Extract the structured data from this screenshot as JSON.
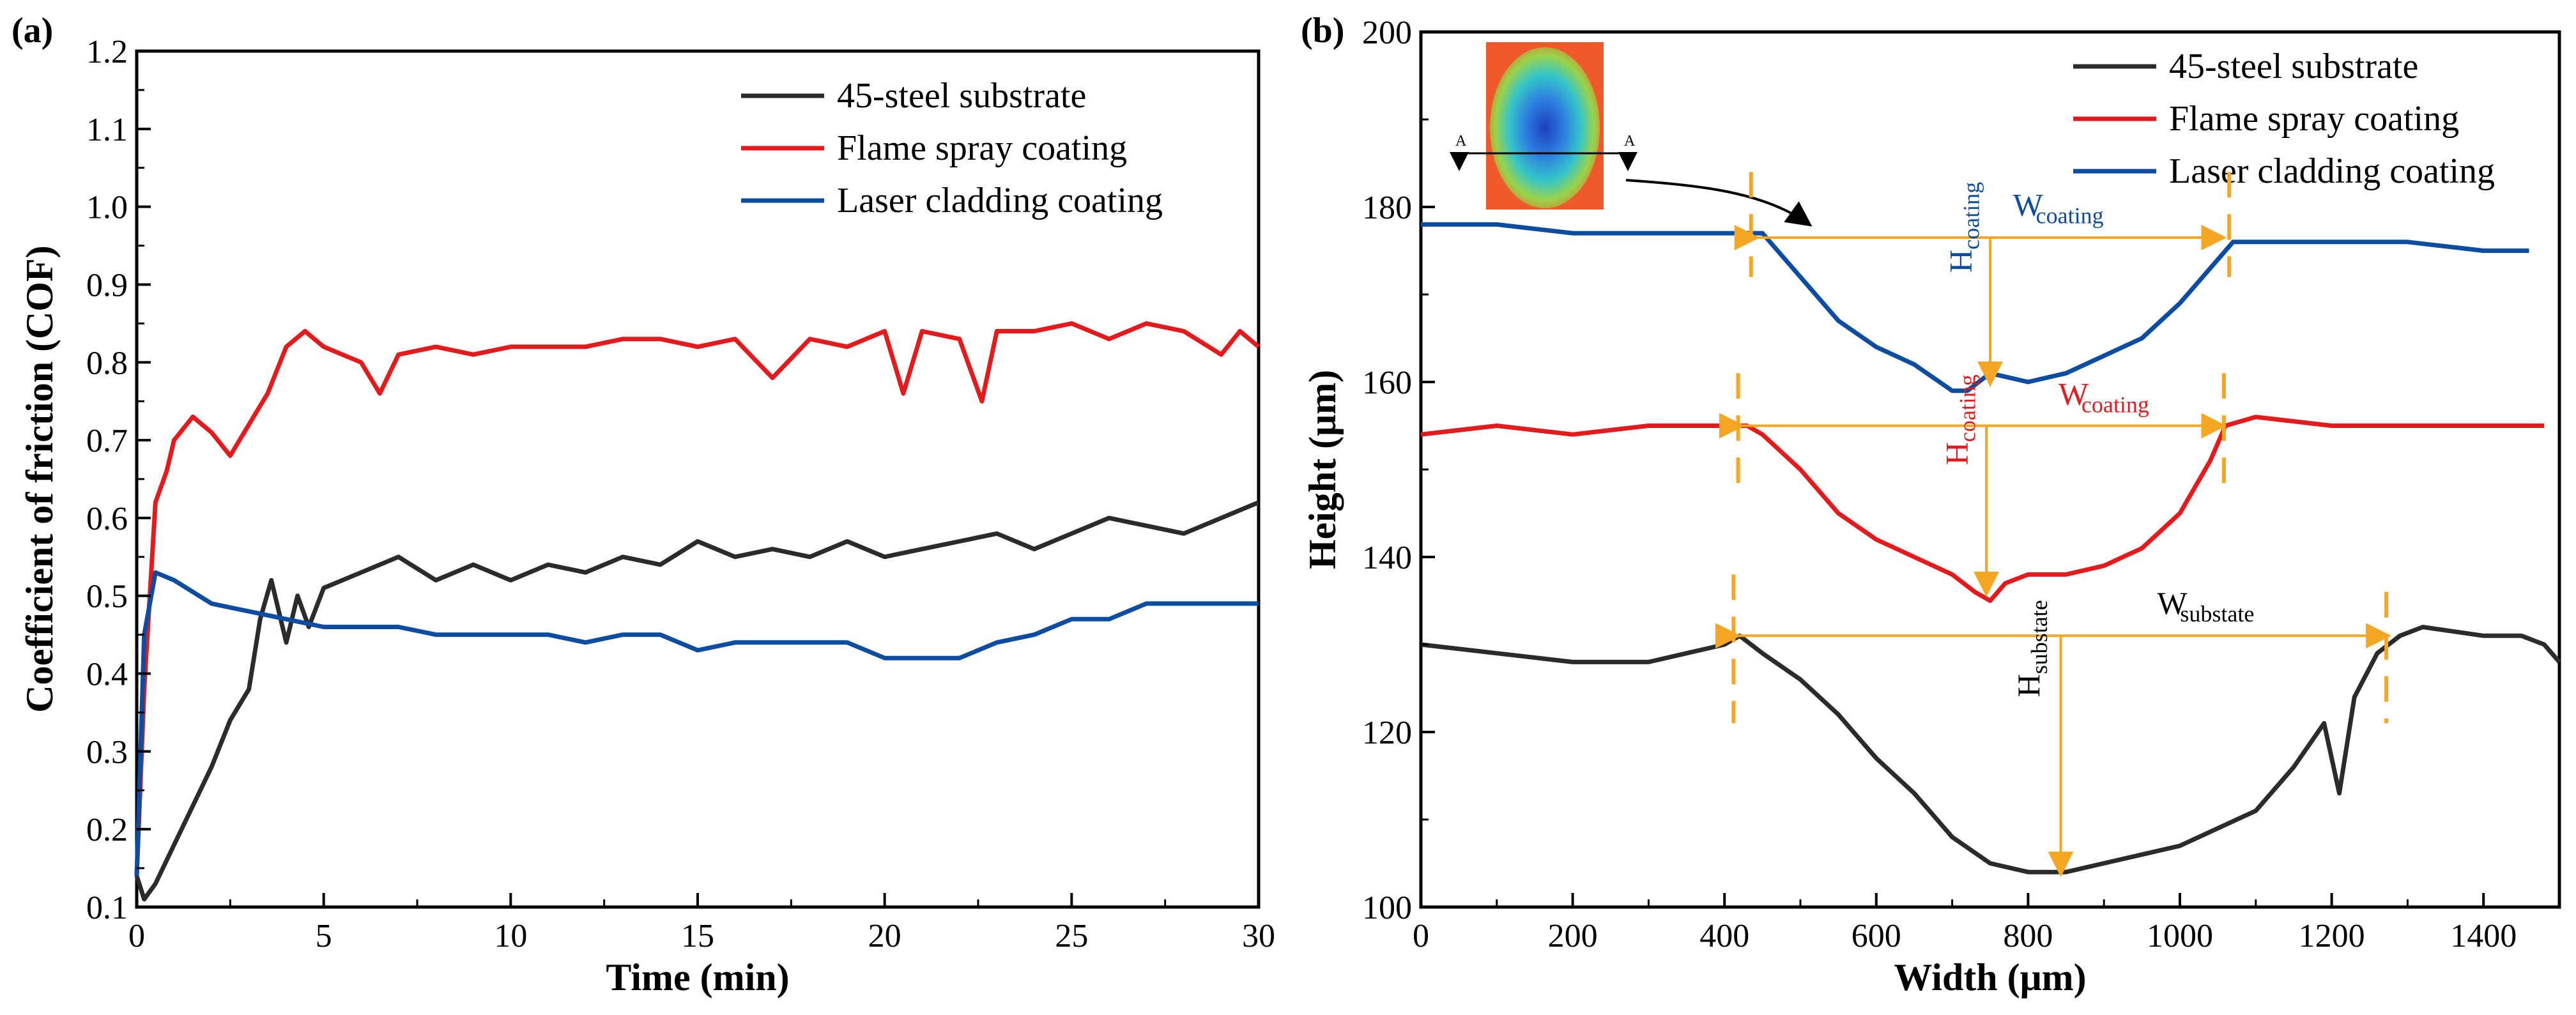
{
  "chart_data": [
    {
      "type": "line",
      "panel_label": "(a)",
      "xlabel": "Time (min)",
      "ylabel": "Coefficient of friction (COF)",
      "xlim": [
        0,
        30
      ],
      "ylim": [
        0.1,
        1.2
      ],
      "xticks": [
        "0",
        "5",
        "10",
        "15",
        "20",
        "25",
        "30"
      ],
      "yticks": [
        "0.1",
        "0.2",
        "0.3",
        "0.4",
        "0.5",
        "0.6",
        "0.7",
        "0.8",
        "0.9",
        "1.0",
        "1.1",
        "1.2"
      ],
      "legend_position": "top-right",
      "series": [
        {
          "name": "45-steel substrate",
          "color": "#2b2b2b",
          "x": [
            0,
            0.2,
            0.5,
            1,
            1.5,
            2,
            2.5,
            3,
            3.3,
            3.6,
            4,
            4.3,
            4.6,
            5,
            6,
            7,
            8,
            9,
            10,
            11,
            12,
            13,
            14,
            15,
            16,
            17,
            18,
            19,
            20,
            21,
            22,
            23,
            24,
            25,
            26,
            27,
            28,
            29,
            30
          ],
          "values": [
            0.14,
            0.11,
            0.13,
            0.18,
            0.23,
            0.28,
            0.34,
            0.38,
            0.47,
            0.52,
            0.44,
            0.5,
            0.46,
            0.51,
            0.53,
            0.55,
            0.52,
            0.54,
            0.52,
            0.54,
            0.53,
            0.55,
            0.54,
            0.57,
            0.55,
            0.56,
            0.55,
            0.57,
            0.55,
            0.56,
            0.57,
            0.58,
            0.56,
            0.58,
            0.6,
            0.59,
            0.58,
            0.6,
            0.62
          ]
        },
        {
          "name": "Flame spray coating",
          "color": "#e41a1c",
          "x": [
            0,
            0.2,
            0.5,
            0.8,
            1,
            1.5,
            2,
            2.5,
            3,
            3.5,
            4,
            4.5,
            5,
            6,
            6.5,
            7,
            8,
            9,
            10,
            11,
            12,
            13,
            14,
            15,
            16,
            17,
            18,
            19,
            20,
            20.5,
            21,
            22,
            22.6,
            23,
            24,
            25,
            26,
            27,
            28,
            29,
            29.5,
            30
          ],
          "values": [
            0.14,
            0.38,
            0.62,
            0.66,
            0.7,
            0.73,
            0.71,
            0.68,
            0.72,
            0.76,
            0.82,
            0.84,
            0.82,
            0.8,
            0.76,
            0.81,
            0.82,
            0.81,
            0.82,
            0.82,
            0.82,
            0.83,
            0.83,
            0.82,
            0.83,
            0.78,
            0.83,
            0.82,
            0.84,
            0.76,
            0.84,
            0.83,
            0.75,
            0.84,
            0.84,
            0.85,
            0.83,
            0.85,
            0.84,
            0.81,
            0.84,
            0.82
          ]
        },
        {
          "name": "Laser cladding coating",
          "color": "#0c4da2",
          "x": [
            0,
            0.2,
            0.5,
            1,
            2,
            3,
            4,
            5,
            6,
            7,
            8,
            9,
            10,
            11,
            12,
            13,
            14,
            15,
            16,
            17,
            18,
            19,
            20,
            21,
            22,
            23,
            24,
            25,
            26,
            27,
            28,
            29,
            30
          ],
          "values": [
            0.14,
            0.45,
            0.53,
            0.52,
            0.49,
            0.48,
            0.47,
            0.46,
            0.46,
            0.46,
            0.45,
            0.45,
            0.45,
            0.45,
            0.44,
            0.45,
            0.45,
            0.43,
            0.44,
            0.44,
            0.44,
            0.44,
            0.42,
            0.42,
            0.42,
            0.44,
            0.45,
            0.47,
            0.47,
            0.49,
            0.49,
            0.49,
            0.49
          ]
        }
      ]
    },
    {
      "type": "line",
      "panel_label": "(b)",
      "xlabel": "Width (μm)",
      "ylabel": "Height (μm)",
      "xlim": [
        0,
        1500
      ],
      "ylim": [
        100,
        200
      ],
      "xticks": [
        "0",
        "200",
        "400",
        "600",
        "800",
        "1000",
        "1200",
        "1400"
      ],
      "yticks": [
        "100",
        "120",
        "140",
        "160",
        "180",
        "200"
      ],
      "legend_position": "top-right",
      "series": [
        {
          "name": "45-steel substrate",
          "color": "#2b2b2b",
          "x": [
            0,
            100,
            200,
            300,
            350,
            400,
            420,
            450,
            500,
            550,
            600,
            650,
            700,
            750,
            800,
            850,
            900,
            950,
            1000,
            1050,
            1100,
            1150,
            1190,
            1210,
            1230,
            1260,
            1290,
            1320,
            1400,
            1450,
            1480,
            1500
          ],
          "values": [
            130,
            129,
            128,
            128,
            129,
            130,
            131,
            129,
            126,
            122,
            117,
            113,
            108,
            105,
            104,
            104,
            105,
            106,
            107,
            109,
            111,
            116,
            121,
            113,
            124,
            129,
            131,
            132,
            131,
            131,
            130,
            128
          ]
        },
        {
          "name": "Flame spray coating",
          "color": "#e41a1c",
          "x": [
            0,
            100,
            200,
            300,
            400,
            430,
            450,
            500,
            550,
            600,
            650,
            700,
            730,
            750,
            770,
            800,
            850,
            900,
            950,
            1000,
            1040,
            1060,
            1100,
            1200,
            1300,
            1400,
            1480
          ],
          "values": [
            154,
            155,
            154,
            155,
            155,
            155,
            154,
            150,
            145,
            142,
            140,
            138,
            136,
            135,
            137,
            138,
            138,
            139,
            141,
            145,
            151,
            155,
            156,
            155,
            155,
            155,
            155
          ]
        },
        {
          "name": "Laser cladding coating",
          "color": "#0c4da2",
          "x": [
            0,
            100,
            200,
            300,
            400,
            450,
            500,
            550,
            600,
            650,
            700,
            720,
            750,
            800,
            850,
            900,
            950,
            1000,
            1040,
            1070,
            1100,
            1200,
            1300,
            1400,
            1460
          ],
          "values": [
            178,
            178,
            177,
            177,
            177,
            177,
            172,
            167,
            164,
            162,
            159,
            159,
            161,
            160,
            161,
            163,
            165,
            169,
            173,
            176,
            176,
            176,
            176,
            175,
            175
          ]
        }
      ],
      "annotations": {
        "coating_width_main": "W",
        "coating_width_sub": "coating",
        "coating_height_main": "H",
        "coating_height_sub": "coating",
        "substrate_width_main": "W",
        "substrate_width_sub": "substate",
        "substrate_height_main": "H",
        "substrate_height_sub": "substate",
        "guide_color": "#f5a623",
        "inset_marker": "A"
      }
    }
  ]
}
